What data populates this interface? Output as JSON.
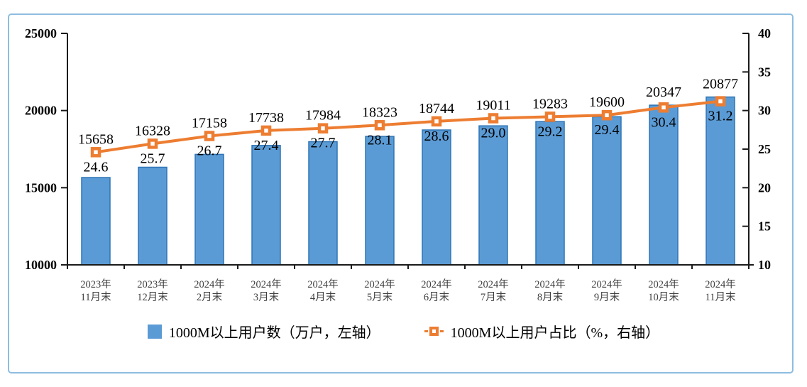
{
  "frame": {
    "border_color": "#8FBCE0",
    "background": "#FFFFFF"
  },
  "colors": {
    "bar_fill": "#5B9BD5",
    "bar_border": "#2E75B6",
    "line": "#ED7D31",
    "marker_fill": "#FFFFFF",
    "axis": "#1A1A1A",
    "data_label": "#000000",
    "tick_label": "#000000",
    "x_label": "#404040"
  },
  "chart_data": {
    "type": "combo-bar-line",
    "title": "",
    "grid": false,
    "legend_position": "bottom",
    "categories": [
      {
        "line1": "2023年",
        "line2": "11月末"
      },
      {
        "line1": "2023年",
        "line2": "12月末"
      },
      {
        "line1": "2024年",
        "line2": "2月末"
      },
      {
        "line1": "2024年",
        "line2": "3月末"
      },
      {
        "line1": "2024年",
        "line2": "4月末"
      },
      {
        "line1": "2024年",
        "line2": "5月末"
      },
      {
        "line1": "2024年",
        "line2": "6月末"
      },
      {
        "line1": "2024年",
        "line2": "7月末"
      },
      {
        "line1": "2024年",
        "line2": "8月末"
      },
      {
        "line1": "2024年",
        "line2": "9月末"
      },
      {
        "line1": "2024年",
        "line2": "10月末"
      },
      {
        "line1": "2024年",
        "line2": "11月末"
      }
    ],
    "series": [
      {
        "name": "1000M以上用户数（万户，左轴）",
        "type": "bar",
        "axis": "left",
        "values": [
          15658,
          16328,
          17158,
          17738,
          17984,
          18323,
          18744,
          19011,
          19283,
          19600,
          20347,
          20877
        ]
      },
      {
        "name": "1000M以上用户占比（%，右轴）",
        "type": "line",
        "axis": "right",
        "values": [
          24.6,
          25.7,
          26.7,
          27.4,
          27.7,
          28.1,
          28.6,
          29.0,
          29.2,
          29.4,
          30.4,
          31.2
        ],
        "label_decimals": 1
      }
    ],
    "left_axis": {
      "min": 10000,
      "max": 25000,
      "ticks": [
        10000,
        15000,
        20000,
        25000
      ]
    },
    "right_axis": {
      "min": 10,
      "max": 40,
      "ticks": [
        10,
        15,
        20,
        25,
        30,
        35,
        40
      ]
    }
  },
  "legend": {
    "items": [
      {
        "label": "1000M以上用户数（万户，左轴）",
        "swatch": "bar"
      },
      {
        "label": "1000M以上用户占比（%，右轴）",
        "swatch": "line"
      }
    ]
  }
}
